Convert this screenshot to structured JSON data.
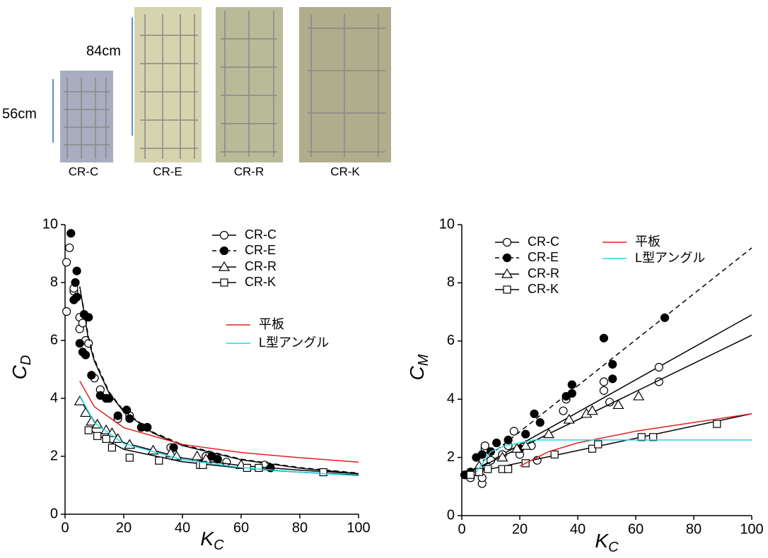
{
  "photos": {
    "labels": [
      "CR-C",
      "CR-E",
      "CR-R",
      "CR-K"
    ],
    "dimensions": [
      "56cm",
      "84cm"
    ]
  },
  "chart_data": [
    {
      "type": "scatter",
      "xlabel": {
        "main": "K",
        "sub": "C"
      },
      "ylabel": {
        "main": "C",
        "sub": "D"
      },
      "xlim": [
        0,
        100
      ],
      "xticks": [
        0,
        20,
        40,
        60,
        80,
        100
      ],
      "ylim": [
        0,
        10
      ],
      "yticks": [
        0,
        2,
        4,
        6,
        8,
        10
      ],
      "series": [
        {
          "name": "CR-C",
          "color": "#000000",
          "marker": "circle-open",
          "dashed": false,
          "x": [
            0.5,
            0.5,
            1.5,
            3,
            3,
            5,
            5,
            6,
            7,
            8,
            10,
            12,
            14,
            18,
            22,
            26,
            28,
            36,
            48,
            55,
            68
          ],
          "values": [
            7.0,
            8.7,
            9.2,
            7.7,
            7.8,
            6.4,
            6.8,
            6.6,
            6.0,
            5.9,
            4.7,
            4.3,
            4.0,
            3.3,
            3.4,
            3.0,
            3.0,
            2.3,
            2.0,
            1.8,
            1.7
          ],
          "fit_x": [
            5,
            8,
            10,
            15,
            20,
            30,
            40,
            60,
            80,
            100
          ],
          "fit_values": [
            7.87,
            6.0,
            5.28,
            4.18,
            3.54,
            2.8,
            2.37,
            1.88,
            1.59,
            1.4
          ]
        },
        {
          "name": "CR-E",
          "color": "#000000",
          "marker": "circle-filled",
          "dashed": true,
          "x": [
            2,
            3,
            3.5,
            4,
            4,
            5,
            6,
            6.5,
            7,
            8,
            9,
            12,
            14,
            15,
            18,
            21,
            22,
            26,
            28,
            37,
            50,
            52,
            70
          ],
          "values": [
            9.7,
            7.4,
            8.0,
            8.4,
            7.5,
            5.9,
            5.6,
            6.9,
            5.5,
            6.8,
            4.8,
            4.1,
            4.0,
            4.0,
            3.4,
            3.6,
            3.3,
            3.0,
            3.0,
            2.3,
            2.0,
            1.9,
            1.6
          ],
          "fit_x": [
            6,
            8,
            10,
            15,
            20,
            30,
            40,
            60,
            80,
            100
          ],
          "fit_values": [
            7.3,
            6.1,
            5.35,
            4.22,
            3.57,
            2.83,
            2.4,
            1.9,
            1.61,
            1.42
          ]
        },
        {
          "name": "CR-R",
          "color": "#000000",
          "marker": "triangle",
          "dashed": false,
          "x": [
            5,
            7,
            9,
            11,
            14,
            16,
            18,
            22,
            30,
            36,
            38,
            45,
            48,
            60
          ],
          "values": [
            3.9,
            3.5,
            3.2,
            3.1,
            2.9,
            2.8,
            2.6,
            2.4,
            2.2,
            2.1,
            2.0,
            2.0,
            1.9,
            1.7
          ],
          "fit_x": [
            5,
            10,
            20,
            40,
            60,
            80,
            100
          ],
          "fit_values": [
            4.0,
            3.14,
            2.47,
            1.94,
            1.68,
            1.52,
            1.4
          ]
        },
        {
          "name": "CR-K",
          "color": "#000000",
          "marker": "square",
          "dashed": false,
          "x": [
            8,
            11,
            14,
            16,
            22,
            32,
            46,
            47,
            62,
            66,
            88
          ],
          "values": [
            2.9,
            2.7,
            2.6,
            2.3,
            1.95,
            1.85,
            1.7,
            1.7,
            1.6,
            1.6,
            1.45
          ],
          "fit_x": [
            8,
            10,
            20,
            40,
            60,
            80,
            100
          ],
          "fit_values": [
            3.0,
            2.79,
            2.24,
            1.81,
            1.59,
            1.45,
            1.35
          ]
        },
        {
          "name": "平板",
          "color": "#e02020",
          "marker": "none",
          "dashed": false,
          "fit_x": [
            5,
            10,
            20,
            40,
            60,
            80,
            100
          ],
          "fit_values": [
            4.6,
            3.71,
            2.99,
            2.41,
            2.13,
            1.95,
            1.8
          ]
        },
        {
          "name": "L型アングル",
          "color": "#20d8e0",
          "marker": "none",
          "dashed": false,
          "fit_x": [
            5,
            10,
            20,
            40,
            60,
            80,
            100
          ],
          "fit_values": [
            4.1,
            3.16,
            2.44,
            1.88,
            1.61,
            1.45,
            1.33
          ]
        }
      ]
    },
    {
      "type": "scatter",
      "xlabel": {
        "main": "K",
        "sub": "C"
      },
      "ylabel": {
        "main": "C",
        "sub": "M"
      },
      "xlim": [
        0,
        100
      ],
      "xticks": [
        0,
        20,
        40,
        60,
        80,
        100
      ],
      "ylim": [
        0,
        10
      ],
      "yticks": [
        0,
        2,
        4,
        6,
        8,
        10
      ],
      "series": [
        {
          "name": "CR-C",
          "color": "#000000",
          "marker": "circle-open",
          "dashed": false,
          "x": [
            1,
            3,
            5,
            7,
            7,
            8,
            8,
            10,
            14,
            16,
            18,
            20,
            24,
            26,
            35,
            36,
            49,
            49,
            51,
            68,
            68
          ],
          "values": [
            1.4,
            1.3,
            1.5,
            1.1,
            1.3,
            2.3,
            2.4,
            1.9,
            2.1,
            2.4,
            2.9,
            2.1,
            2.4,
            1.9,
            3.6,
            4.0,
            4.6,
            4.3,
            3.9,
            5.1,
            4.6
          ],
          "fit_x": [
            5,
            100
          ],
          "fit_values": [
            1.6,
            6.9
          ]
        },
        {
          "name": "CR-E",
          "color": "#000000",
          "marker": "circle-filled",
          "dashed": true,
          "x": [
            1,
            3,
            5,
            7,
            10,
            12,
            16,
            20,
            22,
            25,
            27,
            36,
            38,
            38,
            49,
            52,
            52,
            70
          ],
          "values": [
            1.4,
            1.5,
            2.0,
            2.1,
            2.2,
            2.5,
            2.6,
            2.3,
            2.8,
            3.5,
            3.2,
            4.1,
            4.5,
            4.2,
            6.1,
            5.2,
            4.7,
            6.8
          ],
          "fit_x": [
            5,
            100
          ],
          "fit_values": [
            1.7,
            9.2
          ]
        },
        {
          "name": "CR-R",
          "color": "#000000",
          "marker": "triangle",
          "dashed": false,
          "x": [
            6,
            14,
            19,
            22,
            30,
            37,
            43,
            45,
            54,
            61
          ],
          "values": [
            1.7,
            2.0,
            2.3,
            2.4,
            2.8,
            3.3,
            3.5,
            3.6,
            3.8,
            4.1
          ],
          "fit_x": [
            5,
            100
          ],
          "fit_values": [
            1.6,
            6.2
          ]
        },
        {
          "name": "CR-K",
          "color": "#000000",
          "marker": "square",
          "dashed": false,
          "x": [
            3,
            6,
            9,
            14,
            16,
            22,
            32,
            45,
            47,
            62,
            66,
            88
          ],
          "values": [
            1.4,
            1.5,
            1.6,
            1.6,
            1.6,
            1.8,
            2.1,
            2.3,
            2.45,
            2.7,
            2.7,
            3.15
          ],
          "fit_x": [
            5,
            100
          ],
          "fit_values": [
            1.5,
            3.5
          ]
        },
        {
          "name": "平板",
          "color": "#e02020",
          "marker": "none",
          "dashed": false,
          "fit_x": [
            20,
            30,
            40,
            60,
            80,
            100
          ],
          "fit_values": [
            1.7,
            2.2,
            2.5,
            2.9,
            3.2,
            3.5
          ]
        },
        {
          "name": "L型アングル",
          "color": "#20d8e0",
          "marker": "none",
          "dashed": false,
          "fit_x": [
            5,
            10,
            15,
            20,
            25,
            30,
            100
          ],
          "fit_values": [
            1.5,
            2.2,
            2.4,
            2.5,
            2.6,
            2.6,
            2.6
          ]
        }
      ]
    }
  ]
}
